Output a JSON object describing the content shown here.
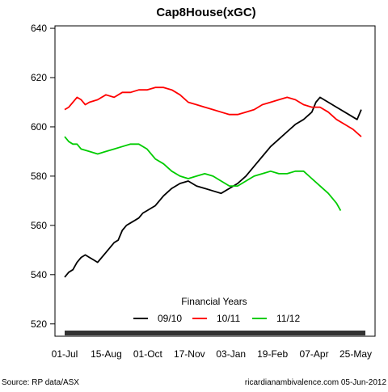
{
  "chart_data": {
    "type": "line",
    "title": "Cap8House(xGC)",
    "xlabel": "",
    "ylabel": "",
    "x_ticks": [
      "01-Jul",
      "15-Aug",
      "01-Oct",
      "17-Nov",
      "03-Jan",
      "19-Feb",
      "07-Apr",
      "25-May"
    ],
    "y_ticks": [
      520,
      540,
      560,
      580,
      600,
      620,
      640
    ],
    "ylim": [
      515,
      641
    ],
    "xlim": [
      0,
      365
    ],
    "grid": false,
    "legend": {
      "title": "Financial Years",
      "placement": "bottom-center"
    },
    "series": [
      {
        "name": "09/10",
        "color": "#000000",
        "x": [
          0,
          5,
          10,
          15,
          20,
          25,
          30,
          35,
          40,
          45,
          50,
          55,
          60,
          65,
          70,
          75,
          80,
          85,
          90,
          95,
          100,
          110,
          120,
          130,
          140,
          150,
          160,
          170,
          180,
          190,
          200,
          210,
          220,
          230,
          240,
          250,
          260,
          270,
          280,
          290,
          300,
          305,
          310,
          320,
          330,
          340,
          350,
          355,
          360
        ],
        "values": [
          539,
          541,
          542,
          545,
          547,
          548,
          547,
          546,
          545,
          547,
          549,
          551,
          553,
          554,
          558,
          560,
          561,
          562,
          563,
          565,
          566,
          568,
          572,
          575,
          577,
          578,
          576,
          575,
          574,
          573,
          575,
          577,
          580,
          584,
          588,
          592,
          595,
          598,
          601,
          603,
          606,
          610,
          612,
          610,
          608,
          606,
          604,
          603,
          607
        ]
      },
      {
        "name": "10/11",
        "color": "#ff0000",
        "x": [
          0,
          5,
          10,
          15,
          20,
          25,
          30,
          40,
          50,
          60,
          70,
          80,
          90,
          100,
          110,
          120,
          130,
          140,
          150,
          160,
          170,
          180,
          190,
          200,
          210,
          220,
          230,
          240,
          250,
          260,
          270,
          280,
          290,
          300,
          310,
          320,
          330,
          340,
          350,
          360
        ],
        "values": [
          607,
          608,
          610,
          612,
          611,
          609,
          610,
          611,
          613,
          612,
          614,
          614,
          615,
          615,
          616,
          616,
          615,
          613,
          610,
          609,
          608,
          607,
          606,
          605,
          605,
          606,
          607,
          609,
          610,
          611,
          612,
          611,
          609,
          608,
          608,
          606,
          603,
          601,
          599,
          596
        ]
      },
      {
        "name": "11/12",
        "color": "#00cc00",
        "x": [
          0,
          5,
          10,
          15,
          20,
          30,
          40,
          50,
          60,
          70,
          80,
          90,
          100,
          110,
          120,
          130,
          140,
          150,
          160,
          170,
          180,
          190,
          200,
          210,
          220,
          230,
          240,
          250,
          260,
          270,
          280,
          290,
          300,
          310,
          320,
          330,
          335
        ],
        "values": [
          596,
          594,
          593,
          593,
          591,
          590,
          589,
          590,
          591,
          592,
          593,
          593,
          591,
          587,
          585,
          582,
          580,
          579,
          580,
          581,
          580,
          578,
          576,
          576,
          578,
          580,
          581,
          582,
          581,
          581,
          582,
          582,
          579,
          576,
          573,
          569,
          566
        ]
      }
    ]
  },
  "footer": {
    "source": "Source: RP data/ASX",
    "credit": "ricardianambivalence.com   05-Jun-2012"
  }
}
